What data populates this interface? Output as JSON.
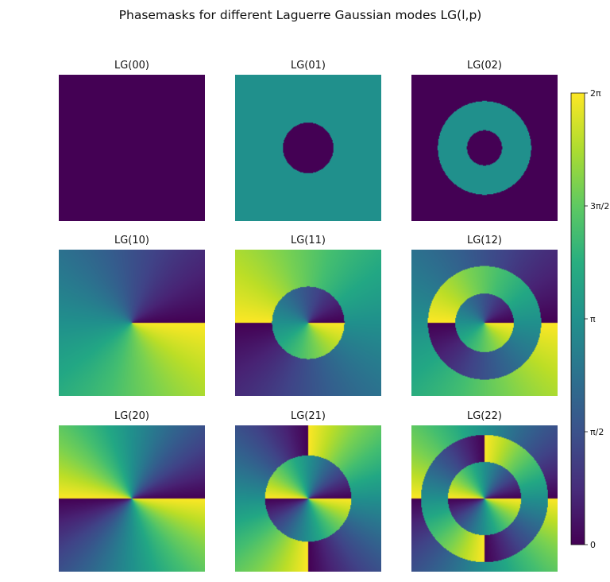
{
  "chart_data": {
    "type": "heatmap",
    "title": "Phasemasks for different Laguerre Gaussian modes LG(l,p)",
    "value_range": [
      0,
      6.2832
    ],
    "colormap": "viridis",
    "panels": [
      {
        "title": "LG(00)",
        "l": 0,
        "p": 0,
        "radial_node_fractions": []
      },
      {
        "title": "LG(01)",
        "l": 0,
        "p": 1,
        "radial_node_fractions": [
          0.345
        ]
      },
      {
        "title": "LG(02)",
        "l": 0,
        "p": 2,
        "radial_node_fractions": [
          0.24,
          0.64
        ]
      },
      {
        "title": "LG(10)",
        "l": 1,
        "p": 0,
        "radial_node_fractions": []
      },
      {
        "title": "LG(11)",
        "l": 1,
        "p": 1,
        "radial_node_fractions": [
          0.495
        ]
      },
      {
        "title": "LG(12)",
        "l": 1,
        "p": 2,
        "radial_node_fractions": [
          0.4,
          0.775
        ]
      },
      {
        "title": "LG(20)",
        "l": 2,
        "p": 0,
        "radial_node_fractions": []
      },
      {
        "title": "LG(21)",
        "l": 2,
        "p": 1,
        "radial_node_fractions": [
          0.59
        ]
      },
      {
        "title": "LG(22)",
        "l": 2,
        "p": 2,
        "radial_node_fractions": [
          0.5,
          0.87
        ]
      }
    ],
    "colorbar": {
      "ticks": [
        0,
        1.5708,
        3.1416,
        4.7124,
        6.2832
      ],
      "tick_labels": [
        "0",
        "π/2",
        "π",
        "3π/2",
        "2π"
      ]
    }
  }
}
